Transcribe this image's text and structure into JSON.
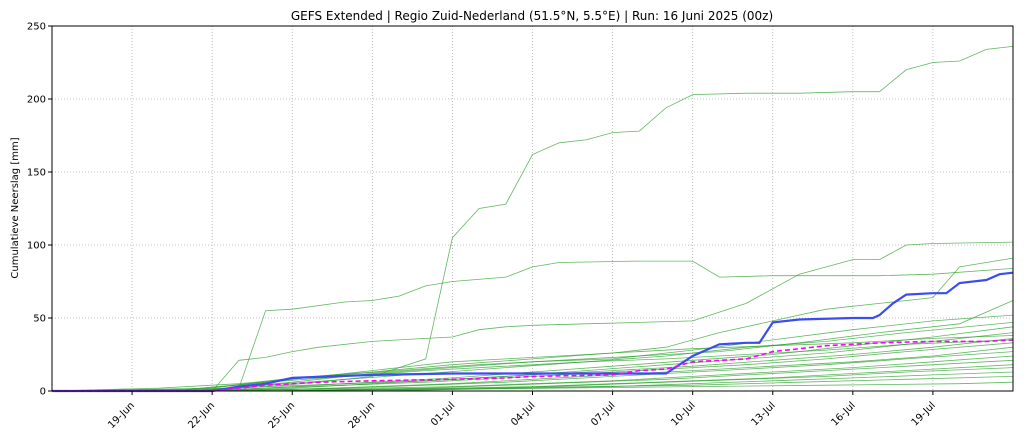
{
  "chart_data": {
    "type": "line",
    "title": "GEFS Extended | Regio Zuid-Nederland (51.5°N, 5.5°E) | Run: 16 Juni 2025 (00z)",
    "xlabel": "",
    "ylabel": "Cumulatieve Neerslag [mm]",
    "xlim": [
      "2025-06-16",
      "2025-07-22"
    ],
    "ylim": [
      0,
      250
    ],
    "yticks": [
      0,
      50,
      100,
      150,
      200,
      250
    ],
    "xticks": [
      {
        "date": "2025-06-19",
        "label": "19-Jun"
      },
      {
        "date": "2025-06-22",
        "label": "22-Jun"
      },
      {
        "date": "2025-06-25",
        "label": "25-Jun"
      },
      {
        "date": "2025-06-28",
        "label": "28-Jun"
      },
      {
        "date": "2025-07-01",
        "label": "01-Jul"
      },
      {
        "date": "2025-07-04",
        "label": "04-Jul"
      },
      {
        "date": "2025-07-07",
        "label": "07-Jul"
      },
      {
        "date": "2025-07-10",
        "label": "10-Jul"
      },
      {
        "date": "2025-07-13",
        "label": "13-Jul"
      },
      {
        "date": "2025-07-16",
        "label": "16-Jul"
      },
      {
        "date": "2025-07-19",
        "label": "19-Jul"
      }
    ],
    "grid": true,
    "colors": {
      "members": "#2ca02c",
      "mean": "#3b4cf0",
      "median": "#ff00ff"
    },
    "members": [
      {
        "x": [
          "2025-06-16",
          "2025-06-20",
          "2025-06-22",
          "2025-06-24",
          "2025-06-26",
          "2025-06-28",
          "2025-06-30",
          "2025-07-01",
          "2025-07-02",
          "2025-07-03",
          "2025-07-04",
          "2025-07-05",
          "2025-07-06",
          "2025-07-07",
          "2025-07-08",
          "2025-07-09",
          "2025-07-10",
          "2025-07-12",
          "2025-07-14",
          "2025-07-16",
          "2025-07-17",
          "2025-07-18",
          "2025-07-19",
          "2025-07-20",
          "2025-07-21",
          "2025-07-22"
        ],
        "y": [
          0,
          0,
          1,
          3,
          6,
          10,
          22,
          105,
          125,
          128,
          162,
          170,
          172,
          177,
          178,
          194,
          203,
          204,
          204,
          205,
          205,
          220,
          225,
          226,
          234,
          236
        ]
      },
      {
        "x": [
          "2025-06-16",
          "2025-06-22",
          "2025-06-23",
          "2025-06-24",
          "2025-06-25",
          "2025-06-27",
          "2025-06-28",
          "2025-06-29",
          "2025-06-30",
          "2025-07-01",
          "2025-07-03",
          "2025-07-04",
          "2025-07-05",
          "2025-07-08",
          "2025-07-10",
          "2025-07-11",
          "2025-07-13",
          "2025-07-17",
          "2025-07-19",
          "2025-07-22"
        ],
        "y": [
          0,
          0,
          2,
          55,
          56,
          61,
          62,
          65,
          72,
          75,
          78,
          85,
          88,
          89,
          89,
          78,
          79,
          79,
          80,
          84
        ]
      },
      {
        "x": [
          "2025-06-16",
          "2025-06-22",
          "2025-06-23",
          "2025-06-24",
          "2025-06-25",
          "2025-06-26",
          "2025-06-28",
          "2025-06-30",
          "2025-07-01",
          "2025-07-02",
          "2025-07-03",
          "2025-07-04",
          "2025-07-06",
          "2025-07-08",
          "2025-07-10",
          "2025-07-12",
          "2025-07-14",
          "2025-07-16",
          "2025-07-17",
          "2025-07-18",
          "2025-07-19",
          "2025-07-22"
        ],
        "y": [
          0,
          0,
          21,
          23,
          27,
          30,
          34,
          36,
          37,
          42,
          44,
          45,
          46,
          47,
          48,
          60,
          80,
          90,
          90,
          100,
          101,
          102
        ]
      },
      {
        "x": [
          "2025-06-16",
          "2025-06-21",
          "2025-06-23",
          "2025-06-25",
          "2025-06-27",
          "2025-06-29",
          "2025-07-01",
          "2025-07-03",
          "2025-07-05",
          "2025-07-07",
          "2025-07-09",
          "2025-07-11",
          "2025-07-13",
          "2025-07-15",
          "2025-07-17",
          "2025-07-19",
          "2025-07-20",
          "2025-07-22"
        ],
        "y": [
          0,
          1,
          4,
          8,
          12,
          16,
          20,
          22,
          24,
          26,
          30,
          40,
          48,
          56,
          60,
          64,
          85,
          91
        ]
      },
      {
        "x": [
          "2025-06-16",
          "2025-06-20",
          "2025-06-23",
          "2025-06-26",
          "2025-06-29",
          "2025-07-02",
          "2025-07-05",
          "2025-07-08",
          "2025-07-11",
          "2025-07-14",
          "2025-07-17",
          "2025-07-20",
          "2025-07-22"
        ],
        "y": [
          0,
          2,
          5,
          10,
          14,
          18,
          21,
          24,
          27,
          33,
          40,
          46,
          62
        ]
      },
      {
        "x": [
          "2025-06-16",
          "2025-06-22",
          "2025-06-25",
          "2025-06-28",
          "2025-07-01",
          "2025-07-04",
          "2025-07-07",
          "2025-07-10",
          "2025-07-13",
          "2025-07-16",
          "2025-07-19",
          "2025-07-22"
        ],
        "y": [
          0,
          1,
          6,
          12,
          16,
          20,
          22,
          28,
          35,
          42,
          48,
          52
        ]
      },
      {
        "x": [
          "2025-06-16",
          "2025-06-21",
          "2025-06-24",
          "2025-06-27",
          "2025-06-30",
          "2025-07-03",
          "2025-07-06",
          "2025-07-09",
          "2025-07-12",
          "2025-07-15",
          "2025-07-18",
          "2025-07-22"
        ],
        "y": [
          0,
          0,
          4,
          8,
          12,
          16,
          20,
          24,
          30,
          34,
          40,
          47
        ]
      },
      {
        "x": [
          "2025-06-16",
          "2025-06-22",
          "2025-06-25",
          "2025-06-28",
          "2025-07-01",
          "2025-07-04",
          "2025-07-07",
          "2025-07-10",
          "2025-07-13",
          "2025-07-16",
          "2025-07-19",
          "2025-07-22"
        ],
        "y": [
          0,
          0,
          3,
          6,
          9,
          13,
          17,
          21,
          25,
          31,
          37,
          44
        ]
      },
      {
        "x": [
          "2025-06-16",
          "2025-06-21",
          "2025-06-24",
          "2025-06-27",
          "2025-06-30",
          "2025-07-03",
          "2025-07-06",
          "2025-07-09",
          "2025-07-12",
          "2025-07-15",
          "2025-07-18",
          "2025-07-22"
        ],
        "y": [
          0,
          1,
          3,
          5,
          7,
          10,
          14,
          18,
          22,
          26,
          32,
          40
        ]
      },
      {
        "x": [
          "2025-06-16",
          "2025-06-22",
          "2025-06-25",
          "2025-06-28",
          "2025-07-01",
          "2025-07-04",
          "2025-07-07",
          "2025-07-10",
          "2025-07-13",
          "2025-07-16",
          "2025-07-19",
          "2025-07-22"
        ],
        "y": [
          0,
          0,
          2,
          5,
          8,
          11,
          14,
          17,
          21,
          25,
          30,
          36
        ]
      },
      {
        "x": [
          "2025-06-16",
          "2025-06-21",
          "2025-06-24",
          "2025-06-27",
          "2025-06-30",
          "2025-07-03",
          "2025-07-06",
          "2025-07-09",
          "2025-07-12",
          "2025-07-15",
          "2025-07-18",
          "2025-07-22"
        ],
        "y": [
          0,
          0,
          2,
          4,
          6,
          9,
          12,
          15,
          18,
          22,
          27,
          33
        ]
      },
      {
        "x": [
          "2025-06-16",
          "2025-06-22",
          "2025-06-25",
          "2025-06-28",
          "2025-07-01",
          "2025-07-04",
          "2025-07-07",
          "2025-07-10",
          "2025-07-13",
          "2025-07-16",
          "2025-07-19",
          "2025-07-22"
        ],
        "y": [
          0,
          0,
          1,
          3,
          5,
          8,
          11,
          14,
          17,
          20,
          24,
          30
        ]
      },
      {
        "x": [
          "2025-06-16",
          "2025-06-21",
          "2025-06-24",
          "2025-06-27",
          "2025-06-30",
          "2025-07-03",
          "2025-07-06",
          "2025-07-09",
          "2025-07-12",
          "2025-07-15",
          "2025-07-18",
          "2025-07-22"
        ],
        "y": [
          0,
          0,
          1,
          2,
          4,
          6,
          9,
          12,
          15,
          18,
          22,
          27
        ]
      },
      {
        "x": [
          "2025-06-16",
          "2025-06-22",
          "2025-06-25",
          "2025-06-28",
          "2025-07-01",
          "2025-07-04",
          "2025-07-07",
          "2025-07-10",
          "2025-07-13",
          "2025-07-16",
          "2025-07-19",
          "2025-07-22"
        ],
        "y": [
          0,
          0,
          1,
          2,
          3,
          5,
          7,
          10,
          13,
          16,
          20,
          24
        ]
      },
      {
        "x": [
          "2025-06-16",
          "2025-06-21",
          "2025-06-24",
          "2025-06-27",
          "2025-06-30",
          "2025-07-03",
          "2025-07-06",
          "2025-07-09",
          "2025-07-12",
          "2025-07-15",
          "2025-07-18",
          "2025-07-22"
        ],
        "y": [
          0,
          0,
          0,
          1,
          2,
          4,
          6,
          8,
          11,
          14,
          17,
          21
        ]
      },
      {
        "x": [
          "2025-06-16",
          "2025-06-22",
          "2025-06-25",
          "2025-06-28",
          "2025-07-01",
          "2025-07-04",
          "2025-07-07",
          "2025-07-10",
          "2025-07-13",
          "2025-07-16",
          "2025-07-19",
          "2025-07-22"
        ],
        "y": [
          0,
          0,
          0,
          1,
          2,
          3,
          5,
          7,
          9,
          12,
          15,
          18
        ]
      },
      {
        "x": [
          "2025-06-16",
          "2025-06-21",
          "2025-06-24",
          "2025-06-27",
          "2025-06-30",
          "2025-07-03",
          "2025-07-06",
          "2025-07-09",
          "2025-07-12",
          "2025-07-15",
          "2025-07-18",
          "2025-07-22"
        ],
        "y": [
          0,
          0,
          0,
          1,
          1,
          2,
          4,
          6,
          8,
          10,
          13,
          16
        ]
      },
      {
        "x": [
          "2025-06-16",
          "2025-06-22",
          "2025-06-25",
          "2025-06-28",
          "2025-07-01",
          "2025-07-04",
          "2025-07-07",
          "2025-07-10",
          "2025-07-13",
          "2025-07-16",
          "2025-07-19",
          "2025-07-22"
        ],
        "y": [
          0,
          0,
          0,
          0,
          1,
          2,
          3,
          5,
          7,
          9,
          11,
          13
        ]
      },
      {
        "x": [
          "2025-06-16",
          "2025-06-24",
          "2025-06-28",
          "2025-07-02",
          "2025-07-06",
          "2025-07-10",
          "2025-07-14",
          "2025-07-18",
          "2025-07-22"
        ],
        "y": [
          0,
          0,
          1,
          2,
          3,
          4,
          6,
          8,
          10
        ]
      },
      {
        "x": [
          "2025-06-16",
          "2025-06-25",
          "2025-06-30",
          "2025-07-05",
          "2025-07-10",
          "2025-07-15",
          "2025-07-20",
          "2025-07-22"
        ],
        "y": [
          0,
          0,
          1,
          2,
          3,
          4,
          5,
          6
        ]
      },
      {
        "x": [
          "2025-06-16",
          "2025-06-22",
          "2025-06-25",
          "2025-06-28",
          "2025-07-01",
          "2025-07-04",
          "2025-07-07",
          "2025-07-10",
          "2025-07-13",
          "2025-07-16",
          "2025-07-19",
          "2025-07-22"
        ],
        "y": [
          0,
          2,
          9,
          13,
          18,
          22,
          26,
          29,
          31,
          33,
          36,
          38
        ]
      },
      {
        "x": [
          "2025-06-16",
          "2025-06-21",
          "2025-06-24",
          "2025-06-27",
          "2025-06-30",
          "2025-07-03",
          "2025-07-06",
          "2025-07-09",
          "2025-07-12",
          "2025-07-15",
          "2025-07-18",
          "2025-07-22"
        ],
        "y": [
          0,
          1,
          6,
          10,
          14,
          17,
          20,
          22,
          25,
          28,
          32,
          35
        ]
      }
    ],
    "series": [
      {
        "name": "",
        "style": "solid",
        "x": [
          "2025-06-16",
          "2025-06-22",
          "2025-06-23",
          "2025-06-24",
          "2025-06-25",
          "2025-06-28",
          "2025-07-01",
          "2025-07-04",
          "2025-07-07",
          "2025-07-09",
          "2025-07-10",
          "2025-07-11",
          "2025-07-12",
          "2025-07-12T12",
          "2025-07-13",
          "2025-07-14",
          "2025-07-16",
          "2025-07-16T18",
          "2025-07-17",
          "2025-07-17T12",
          "2025-07-18",
          "2025-07-19",
          "2025-07-19T12",
          "2025-07-20",
          "2025-07-21",
          "2025-07-21T12",
          "2025-07-22"
        ],
        "y": [
          0,
          0,
          3,
          5,
          9,
          11,
          12,
          12,
          12,
          12,
          24,
          32,
          33,
          33,
          47,
          49,
          50,
          50,
          52,
          60,
          66,
          67,
          67,
          74,
          76,
          80,
          81
        ]
      },
      {
        "name": "",
        "style": "dashed",
        "x": [
          "2025-06-16",
          "2025-06-22",
          "2025-06-23",
          "2025-06-24",
          "2025-06-26",
          "2025-06-28",
          "2025-07-01",
          "2025-07-03",
          "2025-07-04",
          "2025-07-07",
          "2025-07-08",
          "2025-07-09",
          "2025-07-10",
          "2025-07-12",
          "2025-07-13",
          "2025-07-14",
          "2025-07-15",
          "2025-07-16",
          "2025-07-17",
          "2025-07-19",
          "2025-07-21",
          "2025-07-22"
        ],
        "y": [
          0,
          0,
          2,
          4,
          6,
          7,
          8,
          9,
          10,
          11,
          14,
          15,
          20,
          22,
          27,
          29,
          31,
          32,
          33,
          34,
          34,
          35
        ]
      }
    ]
  }
}
